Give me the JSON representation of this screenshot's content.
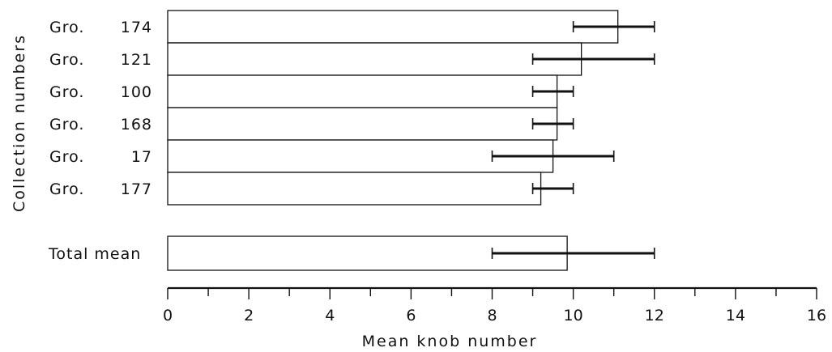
{
  "chart_data": {
    "type": "bar",
    "orientation": "horizontal",
    "xlabel": "Mean knob number",
    "ylabel": "Collection numbers",
    "xlim": [
      0,
      16
    ],
    "xticks": [
      0,
      2,
      4,
      6,
      8,
      10,
      12,
      14,
      16
    ],
    "grid": false,
    "categories": [
      {
        "prefix": "Gro.",
        "number": "174",
        "mean": 11.1,
        "min": 10,
        "max": 12
      },
      {
        "prefix": "Gro.",
        "number": "121",
        "mean": 10.2,
        "min": 9,
        "max": 12
      },
      {
        "prefix": "Gro.",
        "number": "100",
        "mean": 9.6,
        "min": 9,
        "max": 10
      },
      {
        "prefix": "Gro.",
        "number": "168",
        "mean": 9.6,
        "min": 9,
        "max": 10
      },
      {
        "prefix": "Gro.",
        "number": "17",
        "mean": 9.5,
        "min": 8,
        "max": 11
      },
      {
        "prefix": "Gro.",
        "number": "177",
        "mean": 9.2,
        "min": 9,
        "max": 10
      }
    ],
    "total": {
      "label": "Total mean",
      "mean": 9.85,
      "min": 8,
      "max": 12
    }
  }
}
